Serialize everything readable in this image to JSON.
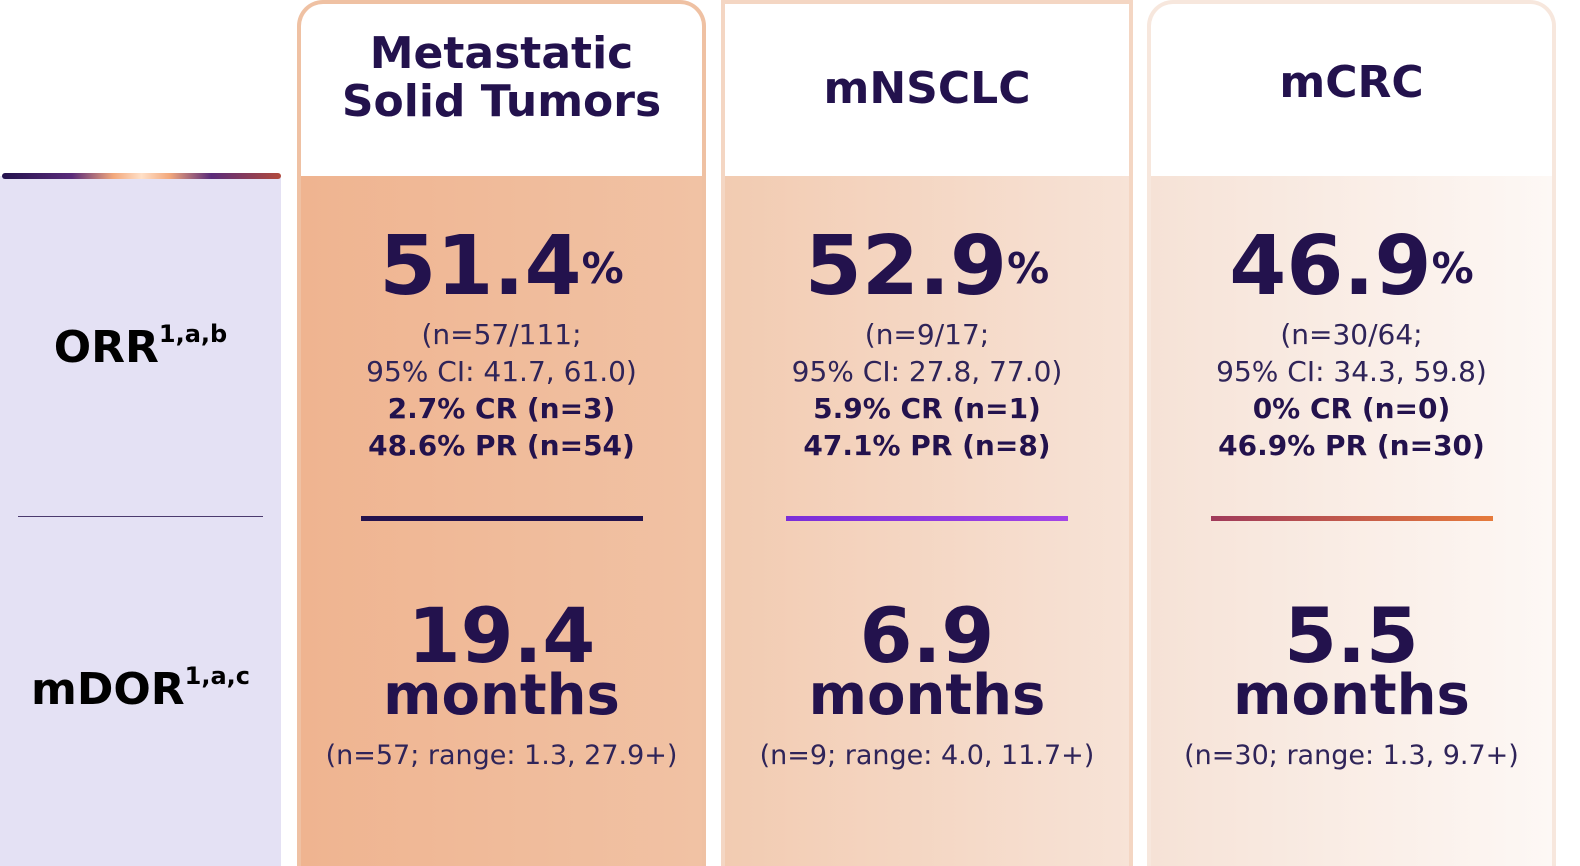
{
  "row_labels": {
    "orr": {
      "text": "ORR",
      "sup": "1,a,b"
    },
    "mdor": {
      "text": "mDOR",
      "sup": "1,a,c"
    }
  },
  "columns": [
    {
      "title": "Metastatic\nSolid Tumors",
      "orr_value": "51.4",
      "orr_unit": "%",
      "orr_n": "(n=57/111;",
      "orr_ci": "95% CI: 41.7, 61.0)",
      "cr": "2.7% CR (n=3)",
      "pr": "48.6% PR (n=54)",
      "mdor_value": "19.4",
      "mdor_unit": "months",
      "mdor_range": "(n=57; range: 1.3, 27.9+)"
    },
    {
      "title": "mNSCLC",
      "orr_value": "52.9",
      "orr_unit": "%",
      "orr_n": "(n=9/17;",
      "orr_ci": "95% CI: 27.8, 77.0)",
      "cr": "5.9% CR (n=1)",
      "pr": "47.1% PR (n=8)",
      "mdor_value": "6.9",
      "mdor_unit": "months",
      "mdor_range": "(n=9; range: 4.0, 11.7+)"
    },
    {
      "title": "mCRC",
      "orr_value": "46.9",
      "orr_unit": "%",
      "orr_n": "(n=30/64;",
      "orr_ci": "95% CI: 34.3, 59.8)",
      "cr": "0% CR (n=0)",
      "pr": "46.9% PR (n=30)",
      "mdor_value": "5.5",
      "mdor_unit": "months",
      "mdor_range": "(n=30; range: 1.3, 9.7+)"
    }
  ],
  "colors": {
    "text_primary": "#23124d",
    "label_column_bg": "#e4e1f4",
    "card1_bg": "#efb490",
    "card2_bg": "#f2cbb1",
    "card3_bg": "#f6e2d6",
    "divider_card2": "#7a2ed8",
    "divider_card3": "#e67b3c"
  }
}
